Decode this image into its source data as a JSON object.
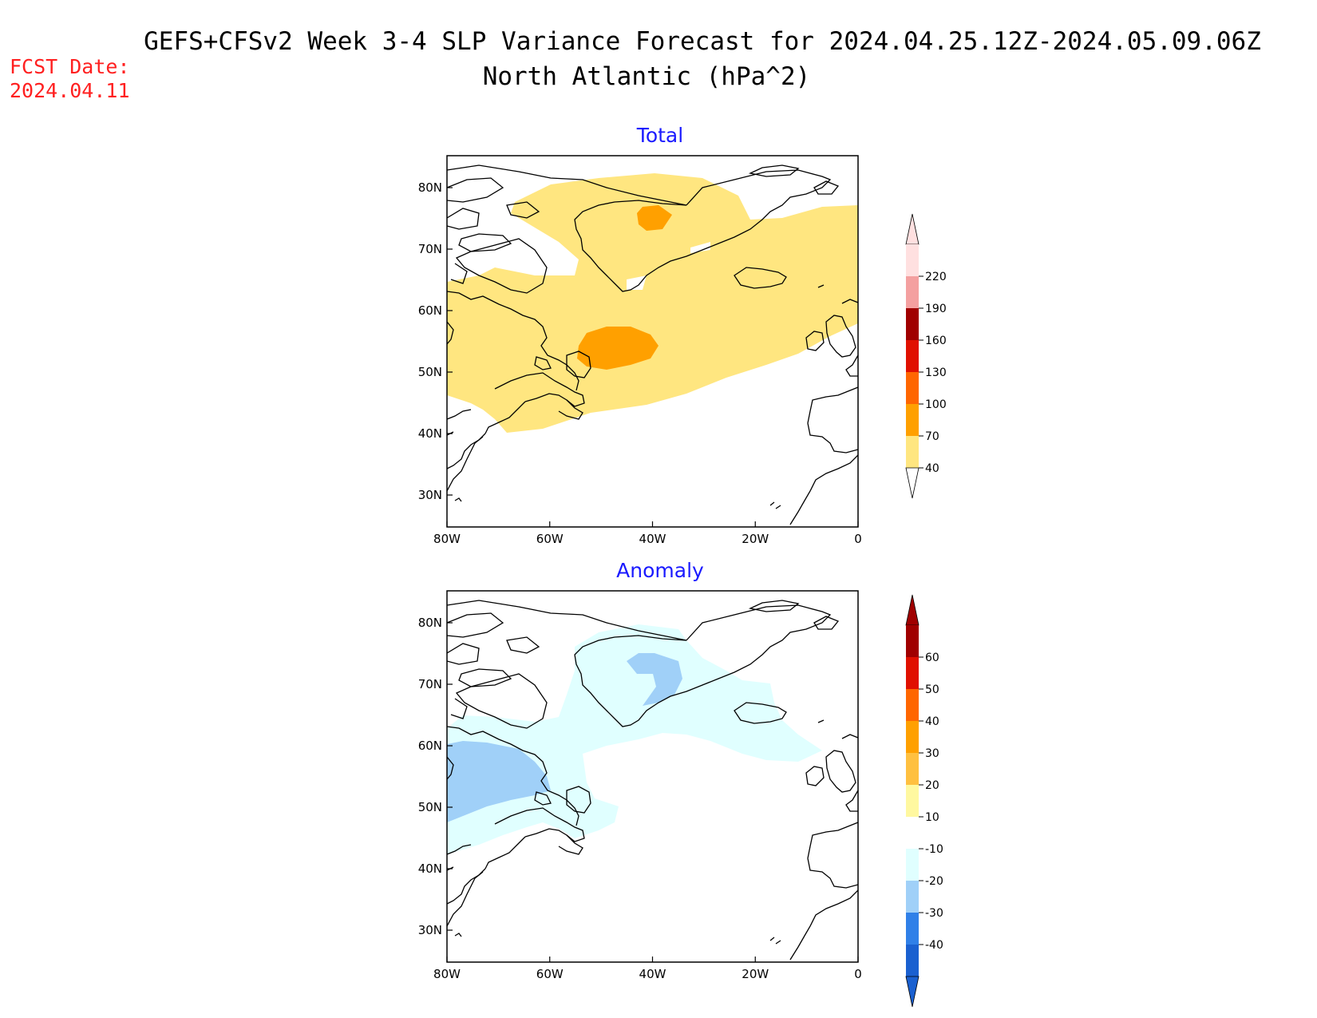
{
  "title": {
    "line1": "GEFS+CFSv2 Week 3-4 SLP Variance Forecast for 2024.04.25.12Z-2024.05.09.06Z",
    "line2": "North Atlantic (hPa^2)"
  },
  "fcst_date": {
    "label": "FCST Date:",
    "value": "2024.04.11"
  },
  "panels": [
    {
      "title": "Total",
      "lat_labels": [
        "80N",
        "70N",
        "60N",
        "50N",
        "40N",
        "30N"
      ],
      "lon_labels": [
        "80W",
        "60W",
        "40W",
        "20W",
        "0"
      ],
      "colorbar": {
        "labels": [
          "220",
          "190",
          "160",
          "130",
          "100",
          "70",
          "40"
        ],
        "colors": [
          "#ffe0e0",
          "#f4a0a0",
          "#a00000",
          "#e01000",
          "#ff6600",
          "#ffa000",
          "#ffe680"
        ]
      },
      "shading": {
        "level_40_70": "#ffe680",
        "level_70_100": "#ffa000"
      }
    },
    {
      "title": "Anomaly",
      "lat_labels": [
        "80N",
        "70N",
        "60N",
        "50N",
        "40N",
        "30N"
      ],
      "lon_labels": [
        "80W",
        "60W",
        "40W",
        "20W",
        "0"
      ],
      "colorbar": {
        "labels": [
          "60",
          "50",
          "40",
          "30",
          "20",
          "10",
          "-10",
          "-20",
          "-30",
          "-40"
        ],
        "colors": [
          "#a00000",
          "#e01000",
          "#ff6600",
          "#ffa000",
          "#ffc040",
          "#fff8a0",
          "#ffffff",
          "#e0ffff",
          "#a0d0f8",
          "#3080e8",
          "#1a60d0"
        ]
      },
      "shading": {
        "level_-20_-10": "#e0ffff",
        "level_-30_-20": "#a0d0f8"
      }
    }
  ]
}
